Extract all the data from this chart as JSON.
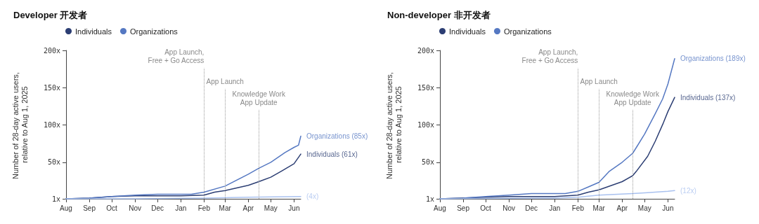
{
  "chart_data": [
    {
      "type": "line",
      "title": "Developer 开发者",
      "ylabel": "Number of 28-day active users, relative to Aug 1, 2025",
      "legend": "top left",
      "grid": false,
      "xlim": [
        "2025-08-01",
        "2026-06-10"
      ],
      "xticks": [
        {
          "value": "2025-08-01",
          "label": "Aug"
        },
        {
          "value": "2025-09-01",
          "label": "Sep"
        },
        {
          "value": "2025-10-01",
          "label": "Oct"
        },
        {
          "value": "2025-11-01",
          "label": "Nov"
        },
        {
          "value": "2025-12-01",
          "label": "Dec"
        },
        {
          "value": "2026-01-01",
          "label": "Jan"
        },
        {
          "value": "2026-02-01",
          "label": "Feb"
        },
        {
          "value": "2026-03-01",
          "label": "Mar"
        },
        {
          "value": "2026-04-01",
          "label": "Apr"
        },
        {
          "value": "2026-05-01",
          "label": "May"
        },
        {
          "value": "2026-06-01",
          "label": "Jun"
        }
      ],
      "ylim": [
        1,
        200
      ],
      "yticks": [
        {
          "value": 1,
          "label": "1x"
        },
        {
          "value": 50,
          "label": "50x"
        },
        {
          "value": 100,
          "label": "100x"
        },
        {
          "value": 150,
          "label": "150x"
        },
        {
          "value": 200,
          "label": "200x"
        }
      ],
      "series": [
        {
          "name": "Individuals",
          "color": "#2c3e73",
          "x": [
            "2025-08-01",
            "2025-09-01",
            "2025-10-01",
            "2025-11-01",
            "2025-12-01",
            "2026-01-01",
            "2026-02-01",
            "2026-02-15",
            "2026-03-01",
            "2026-04-01",
            "2026-04-15",
            "2026-05-01",
            "2026-05-15",
            "2026-06-01",
            "2026-06-10"
          ],
          "values": [
            1,
            2,
            4,
            5,
            5,
            5,
            6,
            10,
            12,
            19,
            24,
            30,
            38,
            48,
            61
          ]
        },
        {
          "name": "Organizations",
          "color": "#5578c2",
          "x": [
            "2025-08-01",
            "2025-09-01",
            "2025-10-01",
            "2025-11-01",
            "2025-12-01",
            "2026-01-01",
            "2026-01-15",
            "2026-02-01",
            "2026-03-01",
            "2026-04-01",
            "2026-04-15",
            "2026-05-01",
            "2026-05-20",
            "2026-06-01",
            "2026-06-07",
            "2026-06-10"
          ],
          "values": [
            1,
            2,
            4,
            6,
            7,
            7,
            7,
            10,
            18,
            34,
            42,
            50,
            63,
            70,
            73,
            85
          ]
        },
        {
          "color": "#a9c1ef",
          "x": [
            "2025-08-01",
            "2025-11-01",
            "2026-02-01",
            "2026-04-01",
            "2026-06-10"
          ],
          "values": [
            1,
            1,
            2,
            3,
            4
          ]
        }
      ],
      "annotations": [
        {
          "text": "Individuals (61x)",
          "x": "2026-06-10",
          "y": 61
        },
        {
          "text": "Organizations (85x)",
          "x": "2026-06-10",
          "y": 85
        },
        {
          "text": "(4x)",
          "x": "2026-06-10",
          "y": 4
        }
      ],
      "ref_lines": [
        {
          "axis": "x",
          "value": "2026-02-01",
          "label": "App Launch,\nFree + Go Access",
          "color": "#999999",
          "line_style": "dotted"
        },
        {
          "axis": "x",
          "value": "2026-03-01",
          "label": "App Launch",
          "color": "#999999",
          "line_style": "dotted"
        },
        {
          "axis": "x",
          "value": "2026-04-15",
          "label": "Knowledge Work\nApp Update",
          "color": "#999999",
          "line_style": "dotted"
        }
      ]
    },
    {
      "type": "line",
      "title": "Non-developer 非开发者",
      "ylabel": "Number of 28-day active users, relative to Aug 1, 2025",
      "legend": "top left",
      "grid": false,
      "xlim": [
        "2025-08-01",
        "2026-06-10"
      ],
      "xticks": [
        {
          "value": "2025-08-01",
          "label": "Aug"
        },
        {
          "value": "2025-09-01",
          "label": "Sep"
        },
        {
          "value": "2025-10-01",
          "label": "Oct"
        },
        {
          "value": "2025-11-01",
          "label": "Nov"
        },
        {
          "value": "2025-12-01",
          "label": "Dec"
        },
        {
          "value": "2026-01-01",
          "label": "Jan"
        },
        {
          "value": "2026-02-01",
          "label": "Feb"
        },
        {
          "value": "2026-03-01",
          "label": "Mar"
        },
        {
          "value": "2026-04-01",
          "label": "Apr"
        },
        {
          "value": "2026-05-01",
          "label": "May"
        },
        {
          "value": "2026-06-01",
          "label": "Jun"
        }
      ],
      "ylim": [
        1,
        200
      ],
      "yticks": [
        {
          "value": 1,
          "label": "1x"
        },
        {
          "value": 50,
          "label": "50x"
        },
        {
          "value": 100,
          "label": "100x"
        },
        {
          "value": 150,
          "label": "150x"
        },
        {
          "value": 200,
          "label": "200x"
        }
      ],
      "series": [
        {
          "name": "Individuals",
          "color": "#2c3e73",
          "x": [
            "2025-08-01",
            "2025-10-01",
            "2025-11-01",
            "2025-12-01",
            "2026-01-01",
            "2026-02-01",
            "2026-02-15",
            "2026-03-01",
            "2026-04-01",
            "2026-04-15",
            "2026-04-20",
            "2026-05-05",
            "2026-05-15",
            "2026-05-26",
            "2026-06-01",
            "2026-06-10"
          ],
          "values": [
            1,
            3,
            4,
            4,
            4,
            6,
            10,
            13,
            24,
            32,
            38,
            58,
            78,
            103,
            118,
            137
          ]
        },
        {
          "name": "Organizations",
          "color": "#5578c2",
          "x": [
            "2025-08-01",
            "2025-09-01",
            "2025-10-01",
            "2025-11-01",
            "2025-12-01",
            "2026-01-01",
            "2026-01-15",
            "2026-02-01",
            "2026-02-15",
            "2026-03-01",
            "2026-03-15",
            "2026-04-01",
            "2026-04-15",
            "2026-04-20",
            "2026-05-01",
            "2026-05-15",
            "2026-05-25",
            "2026-06-01",
            "2026-06-10"
          ],
          "values": [
            1,
            2,
            4,
            6,
            8,
            8,
            8,
            11,
            17,
            23,
            38,
            50,
            62,
            70,
            88,
            115,
            135,
            155,
            189
          ]
        },
        {
          "color": "#a9c1ef",
          "x": [
            "2025-08-01",
            "2026-01-01",
            "2026-02-01",
            "2026-03-01",
            "2026-04-15",
            "2026-05-01",
            "2026-06-01",
            "2026-06-10"
          ],
          "values": [
            1,
            2,
            3,
            6,
            8,
            9,
            11,
            12
          ]
        }
      ],
      "annotations": [
        {
          "text": "Individuals (137x)",
          "x": "2026-06-10",
          "y": 137
        },
        {
          "text": "Organizations (189x)",
          "x": "2026-06-10",
          "y": 189
        },
        {
          "text": "(12x)",
          "x": "2026-06-10",
          "y": 12
        }
      ],
      "ref_lines": [
        {
          "axis": "x",
          "value": "2026-02-01",
          "label": "App Launch,\nFree + Go Access",
          "color": "#999999",
          "line_style": "dotted"
        },
        {
          "axis": "x",
          "value": "2026-03-01",
          "label": "App Launch",
          "color": "#999999",
          "line_style": "dotted"
        },
        {
          "axis": "x",
          "value": "2026-04-15",
          "label": "Knowledge Work\nApp Update",
          "color": "#999999",
          "line_style": "dotted"
        }
      ]
    }
  ]
}
